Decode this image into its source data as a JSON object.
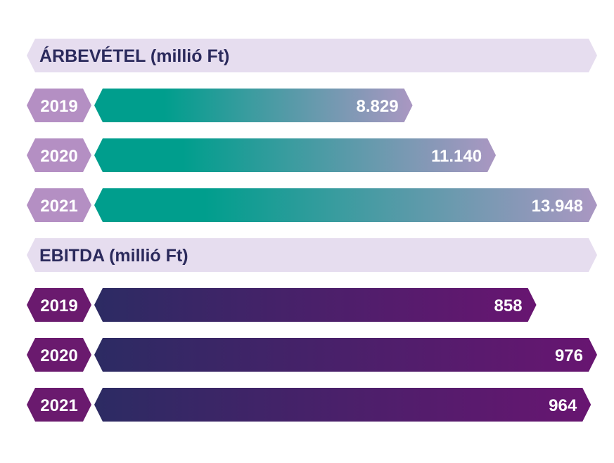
{
  "chart_data": [
    {
      "type": "bar",
      "orientation": "horizontal",
      "title": "ÁRBEVÉTEL (millió Ft)",
      "categories": [
        "2019",
        "2020",
        "2021"
      ],
      "values": [
        8829,
        11140,
        13948
      ],
      "value_labels": [
        "8.829",
        "11.140",
        "13.948"
      ],
      "unit": "millió Ft"
    },
    {
      "type": "bar",
      "orientation": "horizontal",
      "title": "EBITDA (millió Ft)",
      "categories": [
        "2019",
        "2020",
        "2021"
      ],
      "values": [
        858,
        976,
        964
      ],
      "value_labels": [
        "858",
        "976",
        "964"
      ],
      "unit": "millió Ft"
    }
  ],
  "colors": {
    "header_bg": "#e6ddef",
    "header_text": "#2b2a5c",
    "revenue_year_bg": "#b48fc3",
    "revenue_grad_start": "#009e8d",
    "revenue_grad_end": "#aa97c2",
    "ebitda_year_bg": "#6a1a6e",
    "ebitda_grad_start": "#2c2b63",
    "ebitda_grad_end": "#681571"
  }
}
